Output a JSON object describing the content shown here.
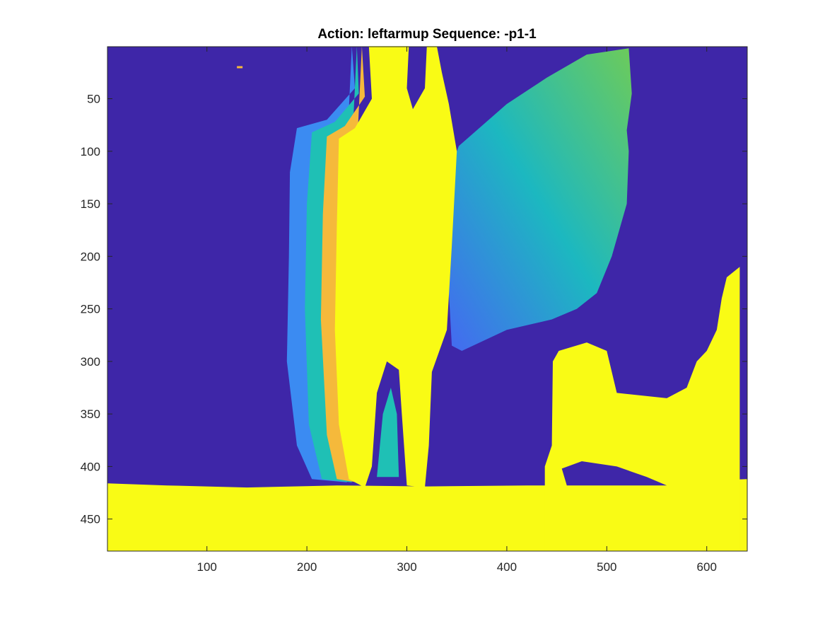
{
  "chart_data": {
    "type": "heatmap",
    "title": "Action: leftarmup Sequence: -p1-1",
    "xlabel": "",
    "ylabel": "",
    "xlim": [
      0.5,
      640.5
    ],
    "ylim": [
      0.5,
      480.5
    ],
    "y_reversed": true,
    "xticks": [
      100,
      200,
      300,
      400,
      500,
      600
    ],
    "yticks": [
      50,
      100,
      150,
      200,
      250,
      300,
      350,
      400,
      450
    ],
    "colormap": "parula",
    "grid": false,
    "colors": {
      "background_depth": "#3e26a8",
      "near_foreground": "#f9fb15",
      "edge_orange": "#f5b93b",
      "edge_cyan": "#1fc0b5",
      "edge_blue": "#3b8bf2",
      "wall_teal": "#1cb8c0",
      "wall_green": "#6dcb5a",
      "wall_blue": "#4568f2"
    },
    "regions": [
      {
        "name": "background",
        "value": "low"
      },
      {
        "name": "person",
        "value": "high"
      },
      {
        "name": "floor",
        "value": "high"
      },
      {
        "name": "furniture",
        "value": "high"
      },
      {
        "name": "wall-gradient",
        "value": "mid"
      }
    ]
  }
}
